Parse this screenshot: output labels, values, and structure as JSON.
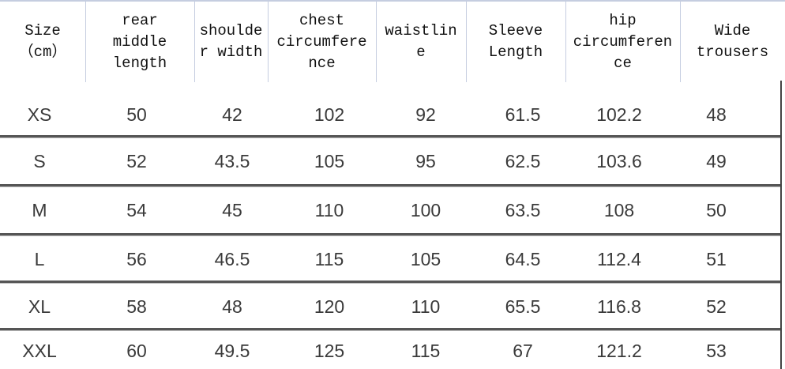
{
  "table": {
    "headers": [
      {
        "lines": [
          "Size",
          "（cm）"
        ]
      },
      {
        "lines": [
          "rear",
          "middle",
          "length"
        ]
      },
      {
        "lines": [
          "shoulde",
          "r width"
        ]
      },
      {
        "lines": [
          "chest",
          "circumfere",
          "nce"
        ]
      },
      {
        "lines": [
          "waistlin",
          "e"
        ]
      },
      {
        "lines": [
          "Sleeve",
          "Length"
        ]
      },
      {
        "lines": [
          "hip",
          "circumferen",
          "ce"
        ]
      },
      {
        "lines": [
          "Wide",
          "trousers"
        ]
      }
    ],
    "rows": [
      [
        "XS",
        "50",
        "42",
        "102",
        "92",
        "61.5",
        "102.2",
        "48"
      ],
      [
        "S",
        "52",
        "43.5",
        "105",
        "95",
        "62.5",
        "103.6",
        "49"
      ],
      [
        "M",
        "54",
        "45",
        "110",
        "100",
        "63.5",
        "108",
        "50"
      ],
      [
        "L",
        "56",
        "46.5",
        "115",
        "105",
        "64.5",
        "112.4",
        "51"
      ],
      [
        "XL",
        "58",
        "48",
        "120",
        "110",
        "65.5",
        "116.8",
        "52"
      ],
      [
        "XXL",
        "60",
        "49.5",
        "125",
        "115",
        "67",
        "121.2",
        "53"
      ]
    ]
  }
}
